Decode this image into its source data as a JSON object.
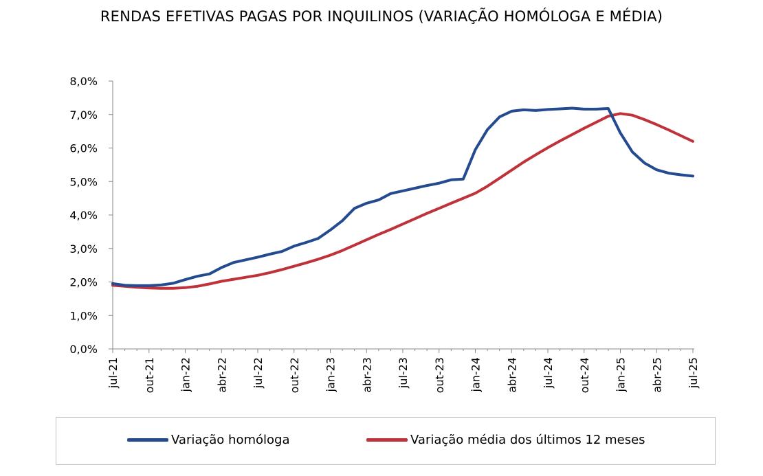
{
  "chart_data": {
    "type": "line",
    "title": "RENDAS EFETIVAS PAGAS POR INQUILINOS (VARIAÇÃO HOMÓLOGA E MÉDIA)",
    "ylim": [
      0,
      8
    ],
    "y_ticks": [
      "0,0%",
      "1,0%",
      "2,0%",
      "3,0%",
      "4,0%",
      "5,0%",
      "6,0%",
      "7,0%",
      "8,0%"
    ],
    "x_tick_labels": [
      "jul-21",
      "out-21",
      "jan-22",
      "abr-22",
      "jul-22",
      "out-22",
      "jan-23",
      "abr-23",
      "jul-23",
      "out-23",
      "jan-24",
      "abr-24",
      "jul-24",
      "out-24",
      "jan-25",
      "abr-25",
      "jul-25"
    ],
    "x": [
      "jul-21",
      "ago-21",
      "set-21",
      "out-21",
      "nov-21",
      "dez-21",
      "jan-22",
      "fev-22",
      "mar-22",
      "abr-22",
      "mai-22",
      "jun-22",
      "jul-22",
      "ago-22",
      "set-22",
      "out-22",
      "nov-22",
      "dez-22",
      "jan-23",
      "fev-23",
      "mar-23",
      "abr-23",
      "mai-23",
      "jun-23",
      "jul-23",
      "ago-23",
      "set-23",
      "out-23",
      "nov-23",
      "dez-23",
      "jan-24",
      "fev-24",
      "mar-24",
      "abr-24",
      "mai-24",
      "jun-24",
      "jul-24",
      "ago-24",
      "set-24",
      "out-24",
      "nov-24",
      "dez-24",
      "jan-25",
      "fev-25",
      "mar-25",
      "abr-25",
      "mai-25",
      "jun-25",
      "jul-25"
    ],
    "series": [
      {
        "name": "Variação homóloga",
        "color": "#244a8f",
        "values": [
          1.95,
          1.9,
          1.89,
          1.89,
          1.91,
          1.96,
          2.07,
          2.17,
          2.24,
          2.43,
          2.58,
          2.66,
          2.74,
          2.83,
          2.91,
          3.07,
          3.18,
          3.3,
          3.55,
          3.83,
          4.2,
          4.35,
          4.45,
          4.64,
          4.72,
          4.8,
          4.88,
          4.95,
          5.05,
          5.07,
          5.95,
          6.55,
          6.93,
          7.1,
          7.14,
          7.12,
          7.15,
          7.17,
          7.19,
          7.16,
          7.16,
          7.18,
          6.45,
          5.88,
          5.55,
          5.35,
          5.25,
          5.2,
          5.16
        ]
      },
      {
        "name": "Variação média dos últimos 12 meses",
        "color": "#c0323a",
        "values": [
          1.9,
          1.87,
          1.84,
          1.82,
          1.81,
          1.81,
          1.83,
          1.87,
          1.94,
          2.02,
          2.08,
          2.14,
          2.2,
          2.28,
          2.37,
          2.47,
          2.57,
          2.68,
          2.8,
          2.94,
          3.1,
          3.26,
          3.42,
          3.57,
          3.73,
          3.89,
          4.05,
          4.2,
          4.35,
          4.5,
          4.65,
          4.86,
          5.1,
          5.34,
          5.58,
          5.8,
          6.01,
          6.21,
          6.4,
          6.59,
          6.77,
          6.95,
          7.03,
          6.98,
          6.85,
          6.7,
          6.54,
          6.37,
          6.2
        ]
      }
    ],
    "grid": false,
    "legend_position": "bottom"
  }
}
